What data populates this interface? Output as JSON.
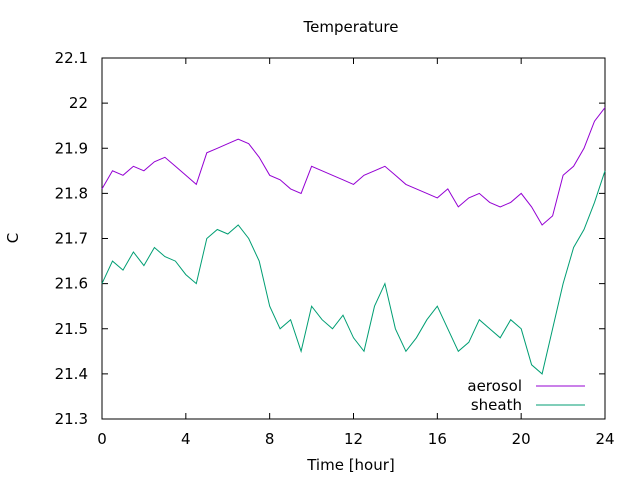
{
  "chart_data": {
    "type": "line",
    "title": "Temperature",
    "xlabel": "Time [hour]",
    "ylabel": "C",
    "xlim": [
      0,
      24
    ],
    "ylim": [
      21.3,
      22.1
    ],
    "x_ticks": [
      "0",
      "4",
      "8",
      "12",
      "16",
      "20",
      "24"
    ],
    "y_ticks": [
      "21.3",
      "21.4",
      "21.5",
      "21.6",
      "21.7",
      "21.8",
      "21.9",
      "22",
      "22.1"
    ],
    "grid": false,
    "legend_position": "bottom-right",
    "series": [
      {
        "name": "aerosol",
        "color": "#9400d3",
        "x": [
          0,
          0.5,
          1,
          1.5,
          2,
          2.5,
          3,
          3.5,
          4,
          4.5,
          5,
          5.5,
          6,
          6.5,
          7,
          7.5,
          8,
          8.5,
          9,
          9.5,
          10,
          10.5,
          11,
          11.5,
          12,
          12.5,
          13,
          13.5,
          14,
          14.5,
          15,
          15.5,
          16,
          16.5,
          17,
          17.5,
          18,
          18.5,
          19,
          19.5,
          20,
          20.5,
          21,
          21.5,
          22,
          22.5,
          23,
          23.5,
          24
        ],
        "y": [
          21.81,
          21.85,
          21.84,
          21.86,
          21.85,
          21.87,
          21.88,
          21.86,
          21.84,
          21.82,
          21.89,
          21.9,
          21.91,
          21.92,
          21.91,
          21.88,
          21.84,
          21.83,
          21.81,
          21.8,
          21.86,
          21.85,
          21.84,
          21.83,
          21.82,
          21.84,
          21.85,
          21.86,
          21.84,
          21.82,
          21.81,
          21.8,
          21.79,
          21.81,
          21.77,
          21.79,
          21.8,
          21.78,
          21.77,
          21.78,
          21.8,
          21.77,
          21.73,
          21.75,
          21.84,
          21.86,
          21.9,
          21.96,
          21.99
        ]
      },
      {
        "name": "sheath",
        "color": "#009e73",
        "x": [
          0,
          0.5,
          1,
          1.5,
          2,
          2.5,
          3,
          3.5,
          4,
          4.5,
          5,
          5.5,
          6,
          6.5,
          7,
          7.5,
          8,
          8.5,
          9,
          9.5,
          10,
          10.5,
          11,
          11.5,
          12,
          12.5,
          13,
          13.5,
          14,
          14.5,
          15,
          15.5,
          16,
          16.5,
          17,
          17.5,
          18,
          18.5,
          19,
          19.5,
          20,
          20.5,
          21,
          21.5,
          22,
          22.5,
          23,
          23.5,
          24
        ],
        "y": [
          21.6,
          21.65,
          21.63,
          21.67,
          21.64,
          21.68,
          21.66,
          21.65,
          21.62,
          21.6,
          21.7,
          21.72,
          21.71,
          21.73,
          21.7,
          21.65,
          21.55,
          21.5,
          21.52,
          21.45,
          21.55,
          21.52,
          21.5,
          21.53,
          21.48,
          21.45,
          21.55,
          21.6,
          21.5,
          21.45,
          21.48,
          21.52,
          21.55,
          21.5,
          21.45,
          21.47,
          21.52,
          21.5,
          21.48,
          21.52,
          21.5,
          21.42,
          21.4,
          21.5,
          21.6,
          21.68,
          21.72,
          21.78,
          21.85
        ]
      }
    ]
  }
}
